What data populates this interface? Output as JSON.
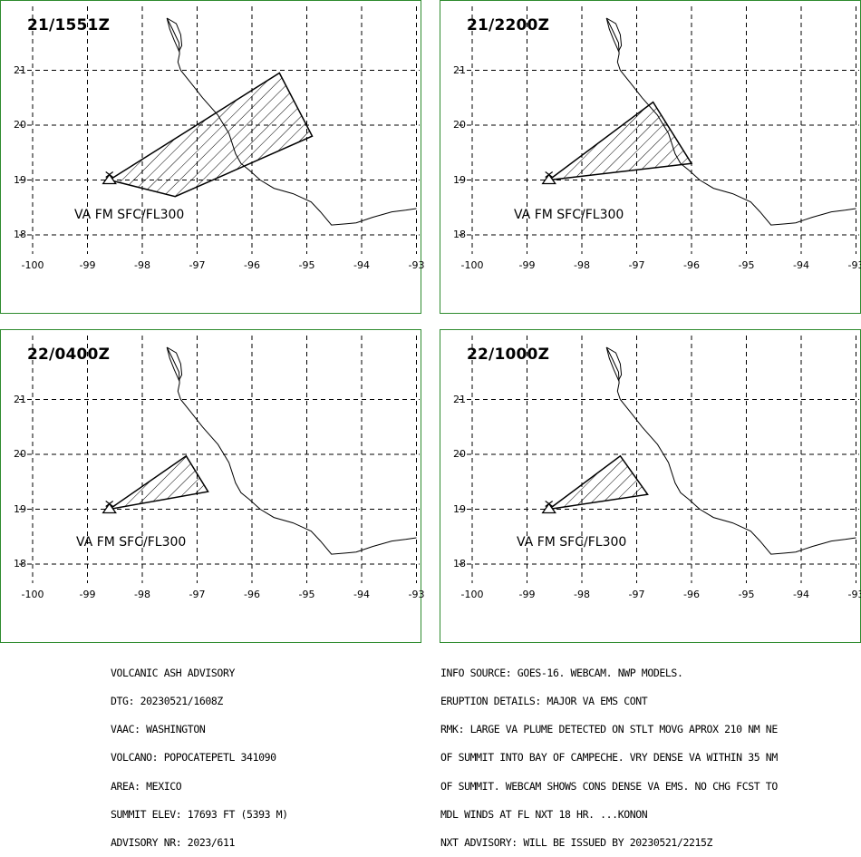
{
  "advisory_left": {
    "lines": [
      "VOLCANIC ASH ADVISORY",
      "DTG: 20230521/1608Z",
      "VAAC: WASHINGTON",
      "VOLCANO: POPOCATEPETL 341090",
      "AREA: MEXICO",
      "SUMMIT ELEV: 17693 FT (5393 M)",
      "ADVISORY NR: 2023/611"
    ]
  },
  "advisory_right": {
    "lines": [
      "INFO SOURCE: GOES-16. WEBCAM. NWP MODELS.",
      "ERUPTION DETAILS: MAJOR VA EMS CONT",
      "RMK: LARGE VA PLUME DETECTED ON STLT MOVG APROX 210 NM NE",
      "OF SUMMIT INTO BAY OF CAMPECHE. VRY DENSE VA WITHIN 35 NM",
      "OF SUMMIT. WEBCAM SHOWS CONS DENSE VA EMS. NO CHG FCST TO",
      "MDL WINDS AT FL NXT 18 HR. ...KONON",
      "NXT ADVISORY: WILL BE ISSUED BY 20230521/2215Z"
    ]
  },
  "map_axes": {
    "lon_ticks": [
      -100,
      -99,
      -98,
      -97,
      -96,
      -95,
      -94,
      -93
    ],
    "lat_ticks": [
      21,
      20,
      19,
      18
    ],
    "lon_range": [
      -100,
      -93
    ],
    "lat_range": [
      17.6,
      22.0
    ]
  },
  "volcano": {
    "lon": -98.6,
    "lat": 19.0
  },
  "panels": [
    {
      "id": "p1",
      "time": "21/1551Z",
      "label": "VA FM SFC/FL300",
      "polygon": [
        [
          -98.6,
          19.0
        ],
        [
          -95.5,
          20.95
        ],
        [
          -94.9,
          19.8
        ],
        [
          -97.4,
          18.7
        ]
      ]
    },
    {
      "id": "p2",
      "time": "21/2200Z",
      "label": "VA FM SFC/FL300",
      "polygon": [
        [
          -98.6,
          19.0
        ],
        [
          -96.7,
          20.42
        ],
        [
          -96.0,
          19.3
        ]
      ]
    },
    {
      "id": "p3",
      "time": "22/0400Z",
      "label": "VA FM SFC/FL300",
      "polygon": [
        [
          -98.6,
          19.0
        ],
        [
          -97.2,
          19.97
        ],
        [
          -96.8,
          19.32
        ]
      ]
    },
    {
      "id": "p4",
      "time": "22/1000Z",
      "label": "VA FM SFC/FL300",
      "polygon": [
        [
          -98.6,
          19.0
        ],
        [
          -97.3,
          19.97
        ],
        [
          -96.8,
          19.27
        ]
      ]
    }
  ],
  "coastline": [
    [
      -97.55,
      21.95
    ],
    [
      -97.45,
      21.75
    ],
    [
      -97.33,
      21.5
    ],
    [
      -97.32,
      21.3
    ],
    [
      -97.35,
      21.15
    ],
    [
      -97.3,
      21.0
    ],
    [
      -97.1,
      20.75
    ],
    [
      -96.9,
      20.5
    ],
    [
      -96.62,
      20.18
    ],
    [
      -96.42,
      19.85
    ],
    [
      -96.3,
      19.48
    ],
    [
      -96.2,
      19.3
    ],
    [
      -96.05,
      19.18
    ],
    [
      -95.85,
      19.0
    ],
    [
      -95.6,
      18.85
    ],
    [
      -95.25,
      18.75
    ],
    [
      -94.92,
      18.6
    ],
    [
      -94.75,
      18.42
    ],
    [
      -94.55,
      18.18
    ],
    [
      -94.3,
      18.2
    ],
    [
      -94.1,
      18.22
    ],
    [
      -93.8,
      18.32
    ],
    [
      -93.45,
      18.42
    ],
    [
      -93.2,
      18.45
    ],
    [
      -93.0,
      18.48
    ]
  ],
  "lagoon": [
    [
      -97.55,
      21.95
    ],
    [
      -97.38,
      21.85
    ],
    [
      -97.3,
      21.65
    ],
    [
      -97.28,
      21.45
    ],
    [
      -97.33,
      21.35
    ],
    [
      -97.42,
      21.55
    ],
    [
      -97.5,
      21.75
    ],
    [
      -97.55,
      21.95
    ]
  ]
}
